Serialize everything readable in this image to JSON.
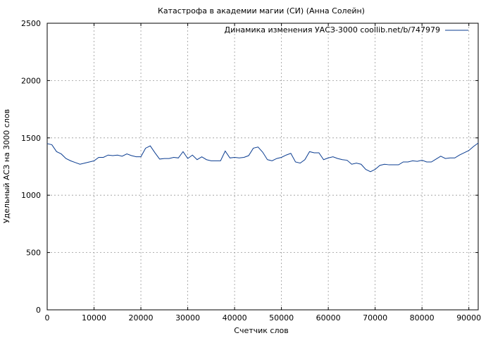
{
  "chart_data": {
    "type": "line",
    "title": "Катастрофа в академии магии (СИ) (Анна Солейн)",
    "xlabel": "Счетчик слов",
    "ylabel": "Удельный АСЗ на 3000 слов",
    "xlim": [
      0,
      92000
    ],
    "ylim": [
      0,
      2500
    ],
    "x_ticks": [
      0,
      10000,
      20000,
      30000,
      40000,
      50000,
      60000,
      70000,
      80000,
      90000
    ],
    "x_tick_labels": [
      "0",
      "10000",
      "20000",
      "30000",
      "40000",
      "50000",
      "60000",
      "70000",
      "80000",
      "90000"
    ],
    "y_ticks": [
      0,
      500,
      1000,
      1500,
      2000,
      2500
    ],
    "y_tick_labels": [
      "0",
      "500",
      "1000",
      "1500",
      "2000",
      "2500"
    ],
    "grid": true,
    "legend_position": "top-right",
    "series_color": "#0b3d91",
    "series": [
      {
        "name": "Динамика изменения УАСЗ-3000 coollib.net/b/747979",
        "x": [
          0,
          1000,
          2000,
          3000,
          4000,
          5000,
          6000,
          7000,
          8000,
          9000,
          10000,
          11000,
          12000,
          13000,
          14000,
          15000,
          16000,
          17000,
          18000,
          19000,
          20000,
          21000,
          22000,
          23000,
          24000,
          25000,
          26000,
          27000,
          28000,
          29000,
          30000,
          31000,
          32000,
          33000,
          34000,
          35000,
          36000,
          37000,
          38000,
          39000,
          40000,
          41000,
          42000,
          43000,
          44000,
          45000,
          46000,
          47000,
          48000,
          49000,
          50000,
          51000,
          52000,
          53000,
          54000,
          55000,
          56000,
          57000,
          58000,
          59000,
          60000,
          61000,
          62000,
          63000,
          64000,
          65000,
          66000,
          67000,
          68000,
          69000,
          70000,
          71000,
          72000,
          73000,
          74000,
          75000,
          76000,
          77000,
          78000,
          79000,
          80000,
          81000,
          82000,
          83000,
          84000,
          85000,
          86000,
          87000,
          88000,
          89000,
          90000,
          91000,
          92000
        ],
        "y": [
          1450,
          1440,
          1380,
          1360,
          1320,
          1300,
          1285,
          1270,
          1280,
          1290,
          1300,
          1330,
          1330,
          1350,
          1345,
          1350,
          1340,
          1360,
          1345,
          1335,
          1335,
          1410,
          1430,
          1370,
          1315,
          1320,
          1320,
          1330,
          1325,
          1380,
          1320,
          1350,
          1310,
          1335,
          1310,
          1300,
          1300,
          1300,
          1385,
          1325,
          1330,
          1325,
          1330,
          1345,
          1410,
          1420,
          1375,
          1310,
          1300,
          1320,
          1330,
          1350,
          1365,
          1290,
          1280,
          1310,
          1380,
          1370,
          1370,
          1310,
          1325,
          1335,
          1320,
          1310,
          1305,
          1270,
          1280,
          1270,
          1225,
          1205,
          1225,
          1260,
          1270,
          1265,
          1265,
          1265,
          1290,
          1290,
          1300,
          1295,
          1305,
          1290,
          1290,
          1315,
          1340,
          1320,
          1325,
          1325,
          1350,
          1370,
          1390,
          1425,
          1455
        ]
      }
    ]
  }
}
